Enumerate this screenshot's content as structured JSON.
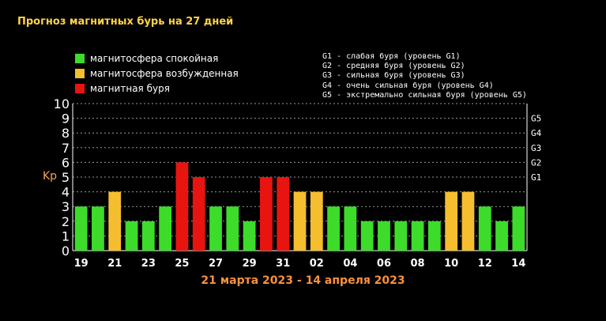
{
  "title": "Прогноз магнитных бурь на 27 дней",
  "legend": [
    {
      "label": "магнитосфера спокойная",
      "color": "#3ddc2a"
    },
    {
      "label": "магнитосфера возбужденная",
      "color": "#f5be2e"
    },
    {
      "label": "магнитная буря",
      "color": "#e8140f"
    }
  ],
  "storm_levels": [
    "G1 - слабая буря (уровень G1)",
    "G2 - средняя буря (уровень G2)",
    "G3 - сильная буря (уровень G3)",
    "G4 - очень сильная буря (уровень G4)",
    "G5 - экстремально сильная буря (уровень G5)"
  ],
  "ylabel": "Kp",
  "date_range": "21 марта 2023 - 14 апреля 2023",
  "chart_data": {
    "type": "bar",
    "title": "Прогноз магнитных бурь на 27 дней",
    "ylabel": "Kp",
    "xlabel": "21 марта 2023 - 14 апреля 2023",
    "ylim": [
      0,
      10
    ],
    "yticks": [
      0,
      1,
      2,
      3,
      4,
      5,
      6,
      7,
      8,
      9,
      10
    ],
    "right_ticks": [
      {
        "label": "G1",
        "value": 5
      },
      {
        "label": "G2",
        "value": 6
      },
      {
        "label": "G3",
        "value": 7
      },
      {
        "label": "G4",
        "value": 8
      },
      {
        "label": "G5",
        "value": 9
      }
    ],
    "xtick_labels": [
      "19",
      "21",
      "23",
      "25",
      "27",
      "29",
      "31",
      "02",
      "04",
      "06",
      "08",
      "10",
      "12",
      "14"
    ],
    "values": [
      3,
      3,
      4,
      2,
      2,
      3,
      6,
      5,
      3,
      3,
      2,
      5,
      5,
      4,
      4,
      3,
      3,
      2,
      2,
      2,
      2,
      2,
      4,
      4,
      3,
      2,
      3
    ],
    "status": [
      "calm",
      "calm",
      "excited",
      "calm",
      "calm",
      "calm",
      "storm",
      "storm",
      "calm",
      "calm",
      "calm",
      "storm",
      "storm",
      "excited",
      "excited",
      "calm",
      "calm",
      "calm",
      "calm",
      "calm",
      "calm",
      "calm",
      "excited",
      "excited",
      "calm",
      "calm",
      "calm"
    ],
    "colors": {
      "calm": "#3ddc2a",
      "excited": "#f5be2e",
      "storm": "#e8140f"
    },
    "grid": "horizontal dashed"
  }
}
